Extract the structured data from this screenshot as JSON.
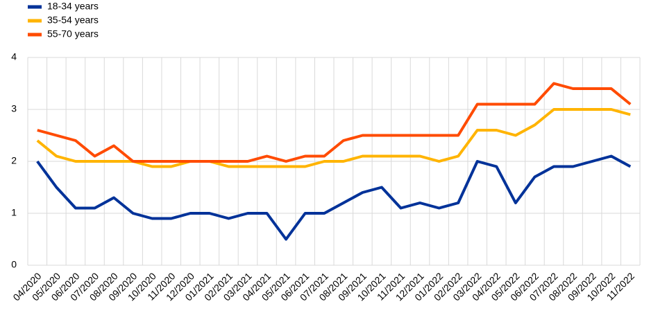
{
  "chart_data": {
    "type": "line",
    "categories": [
      "04/2020",
      "05/2020",
      "06/2020",
      "07/2020",
      "08/2020",
      "09/2020",
      "10/2020",
      "11/2020",
      "12/2020",
      "01/2021",
      "02/2021",
      "03/2021",
      "04/2021",
      "05/2021",
      "06/2021",
      "07/2021",
      "08/2021",
      "09/2021",
      "10/2021",
      "11/2021",
      "12/2021",
      "01/2022",
      "02/2022",
      "03/2022",
      "04/2022",
      "05/2022",
      "06/2022",
      "07/2022",
      "08/2022",
      "09/2022",
      "10/2022",
      "11/2022"
    ],
    "series": [
      {
        "name": "18-34 years",
        "color": "#003299",
        "values": [
          2.0,
          1.5,
          1.1,
          1.1,
          1.3,
          1.0,
          0.9,
          0.9,
          1.0,
          1.0,
          0.9,
          1.0,
          1.0,
          0.5,
          1.0,
          1.0,
          1.2,
          1.4,
          1.5,
          1.1,
          1.2,
          1.1,
          1.2,
          2.0,
          1.9,
          1.2,
          1.7,
          1.9,
          1.9,
          2.0,
          2.1,
          1.9
        ]
      },
      {
        "name": "35-54 years",
        "color": "#ffb400",
        "values": [
          2.4,
          2.1,
          2.0,
          2.0,
          2.0,
          2.0,
          1.9,
          1.9,
          2.0,
          2.0,
          1.9,
          1.9,
          1.9,
          1.9,
          1.9,
          2.0,
          2.0,
          2.1,
          2.1,
          2.1,
          2.1,
          2.0,
          2.1,
          2.6,
          2.6,
          2.5,
          2.7,
          3.0,
          3.0,
          3.0,
          3.0,
          2.9
        ]
      },
      {
        "name": "55-70 years",
        "color": "#ff4b00",
        "values": [
          2.6,
          2.5,
          2.4,
          2.1,
          2.3,
          2.0,
          2.0,
          2.0,
          2.0,
          2.0,
          2.0,
          2.0,
          2.1,
          2.0,
          2.1,
          2.1,
          2.4,
          2.5,
          2.5,
          2.5,
          2.5,
          2.5,
          2.5,
          3.1,
          3.1,
          3.1,
          3.1,
          3.5,
          3.4,
          3.4,
          3.4,
          3.1
        ]
      }
    ],
    "ylim": [
      0,
      4
    ],
    "yticks": [
      0,
      1,
      2,
      3,
      4
    ],
    "grid": true,
    "legend": "top-left"
  }
}
